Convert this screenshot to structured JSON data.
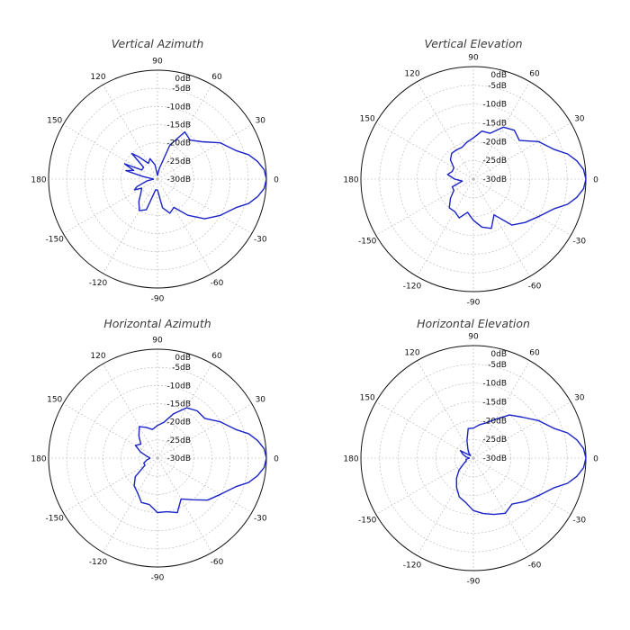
{
  "colors": {
    "trace": "#1a23c8",
    "grid": "#b5b5b5",
    "outer": "#111111",
    "title": "#3a3a3a"
  },
  "chart_data": [
    {
      "type": "polar",
      "title": "Vertical Azimuth",
      "angle_ticks": [
        "0",
        "30",
        "60",
        "90",
        "120",
        "150",
        "180",
        "-150",
        "-120",
        "-90",
        "-60",
        "-30"
      ],
      "radial_ticks": [
        "0dB",
        "-5dB",
        "-10dB",
        "-15dB",
        "-20dB",
        "-25dB",
        "-30dB"
      ],
      "r_range_db": [
        -30,
        0
      ],
      "grid": true,
      "series": [
        {
          "theta_deg": [
            -180,
            -170,
            -160,
            -155,
            -150,
            -140,
            -130,
            -120,
            -110,
            -100,
            -90,
            -80,
            -70,
            -60,
            -50,
            -40,
            -30,
            -20,
            -15,
            -10,
            -5,
            0,
            5,
            10,
            15,
            20,
            30,
            40,
            50,
            60,
            70,
            80,
            90,
            100,
            110,
            120,
            130,
            135,
            140,
            150,
            155,
            160,
            165,
            170,
            180
          ],
          "r_db": [
            -29,
            -27,
            -24,
            -23,
            -25,
            -24,
            -22,
            -20,
            -21,
            -27,
            -27,
            -22,
            -20,
            -21,
            -17,
            -13,
            -10,
            -7,
            -4,
            -2,
            -0.5,
            0,
            -0.5,
            -2,
            -4,
            -7,
            -10,
            -14,
            -16,
            -15,
            -20,
            -27,
            -29,
            -26,
            -24,
            -25,
            -22,
            -20,
            -25,
            -25,
            -20,
            -23,
            -21,
            -26,
            -29
          ]
        }
      ]
    },
    {
      "type": "polar",
      "title": "Vertical Elevation",
      "angle_ticks": [
        "0",
        "30",
        "60",
        "90",
        "120",
        "150",
        "180",
        "-150",
        "-120",
        "-90",
        "-60",
        "-30"
      ],
      "radial_ticks": [
        "0dB",
        "-5dB",
        "-10dB",
        "-15dB",
        "-20dB",
        "-25dB",
        "-30dB"
      ],
      "r_range_db": [
        -30,
        0
      ],
      "grid": true,
      "series": [
        {
          "theta_deg": [
            -180,
            -170,
            -160,
            -150,
            -140,
            -130,
            -120,
            -110,
            -100,
            -90,
            -80,
            -70,
            -60,
            -50,
            -40,
            -30,
            -20,
            -15,
            -10,
            -5,
            0,
            5,
            10,
            15,
            20,
            30,
            40,
            50,
            60,
            70,
            80,
            90,
            100,
            110,
            120,
            130,
            140,
            150,
            160,
            170,
            180
          ],
          "r_db": [
            -25,
            -27,
            -24,
            -24,
            -22,
            -20,
            -20,
            -19,
            -21,
            -19,
            -17,
            -16,
            -19,
            -14,
            -12,
            -10,
            -7,
            -4,
            -2,
            -0.5,
            0,
            -0.5,
            -2,
            -4,
            -7,
            -10,
            -14,
            -13,
            -14,
            -17,
            -17,
            -19,
            -20,
            -21,
            -21,
            -21,
            -22,
            -24,
            -24,
            -23,
            -25
          ]
        }
      ]
    },
    {
      "type": "polar",
      "title": "Horizontal Azimuth",
      "angle_ticks": [
        "0",
        "30",
        "60",
        "90",
        "120",
        "150",
        "180",
        "-150",
        "-120",
        "-90",
        "-60",
        "-30"
      ],
      "radial_ticks": [
        "0dB",
        "-5dB",
        "-10dB",
        "-15dB",
        "-20dB",
        "-25dB",
        "-30dB"
      ],
      "r_range_db": [
        -30,
        0
      ],
      "grid": true,
      "series": [
        {
          "theta_deg": [
            -180,
            -170,
            -160,
            -150,
            -140,
            -130,
            -120,
            -110,
            -100,
            -90,
            -80,
            -70,
            -60,
            -50,
            -40,
            -30,
            -20,
            -15,
            -10,
            -5,
            0,
            5,
            10,
            15,
            20,
            30,
            40,
            50,
            60,
            70,
            80,
            90,
            100,
            110,
            120,
            130,
            140,
            150,
            160,
            170,
            180
          ],
          "r_db": [
            -28,
            -27,
            -26,
            -26,
            -22,
            -20,
            -19,
            -17,
            -17,
            -15,
            -15,
            -14,
            -17,
            -15,
            -12,
            -10,
            -7,
            -4,
            -2,
            -0.5,
            0,
            -0.5,
            -2,
            -4,
            -7,
            -10,
            -13,
            -13,
            -14,
            -17,
            -20,
            -21,
            -22,
            -21,
            -20,
            -22,
            -24,
            -23,
            -25,
            -27,
            -28
          ]
        }
      ]
    },
    {
      "type": "polar",
      "title": "Horizontal Elevation",
      "angle_ticks": [
        "0",
        "30",
        "60",
        "90",
        "120",
        "150",
        "180",
        "-150",
        "-120",
        "-90",
        "-60",
        "-30"
      ],
      "radial_ticks": [
        "0dB",
        "-5dB",
        "-10dB",
        "-15dB",
        "-20dB",
        "-25dB",
        "-30dB"
      ],
      "r_range_db": [
        -30,
        0
      ],
      "grid": true,
      "series": [
        {
          "theta_deg": [
            -180,
            -170,
            -160,
            -150,
            -140,
            -130,
            -120,
            -110,
            -100,
            -90,
            -80,
            -70,
            -60,
            -50,
            -40,
            -30,
            -20,
            -15,
            -10,
            -5,
            0,
            5,
            10,
            15,
            20,
            30,
            40,
            50,
            60,
            70,
            80,
            90,
            100,
            110,
            120,
            130,
            140,
            150,
            160,
            170,
            180
          ],
          "r_db": [
            -29,
            -28,
            -28,
            -27,
            -25,
            -23,
            -21,
            -19,
            -18,
            -16,
            -15,
            -14,
            -13,
            -14,
            -12,
            -10,
            -7,
            -4,
            -2,
            -0.5,
            0,
            -0.5,
            -2,
            -4,
            -7,
            -10,
            -13,
            -15,
            -18,
            -20,
            -21,
            -22,
            -22,
            -25,
            -27,
            -28,
            -29,
            -26,
            -27,
            -28,
            -29
          ]
        }
      ]
    }
  ]
}
